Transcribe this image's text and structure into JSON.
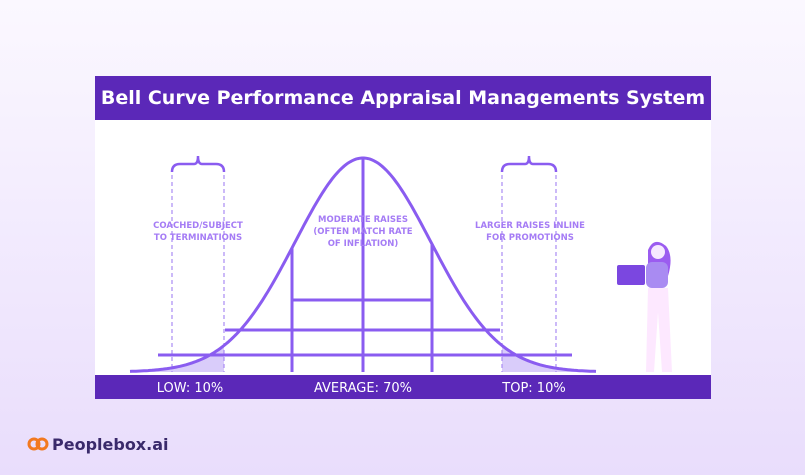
{
  "header": {
    "title": "Bell Curve Performance Appraisal Managements System"
  },
  "annotations": [
    {
      "lines": [
        "COACHED/SUBJECT",
        "TO TERMINATIONS"
      ]
    },
    {
      "lines": [
        "MODERATE RAISES",
        "(OFTEN MATCH RATE",
        "OF INFLATION)"
      ]
    },
    {
      "lines": [
        "LARGER RAISES INLINE",
        "FOR PROMOTIONS"
      ]
    }
  ],
  "footer_labels": [
    "LOW: 10%",
    "AVERAGE: 70%",
    "TOP: 10%"
  ],
  "brand": "Peoplebox.ai"
}
